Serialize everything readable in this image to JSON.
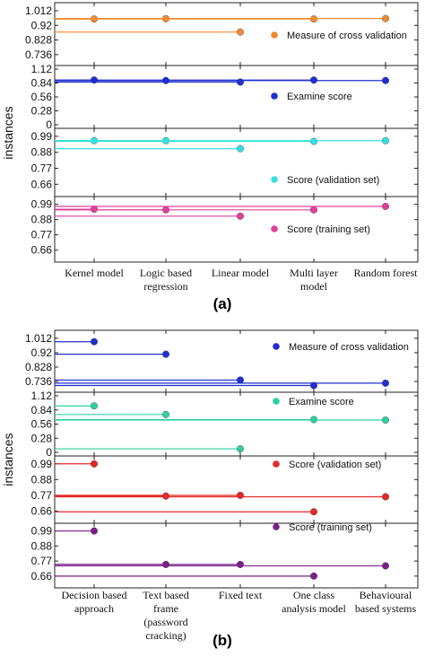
{
  "chart_data": [
    {
      "type": "scatter",
      "subfigure_label": "(a)",
      "ylabel": "instances",
      "categories": [
        "Kernel model",
        "Logic based regression",
        "Linear model",
        "Multi layer model",
        "Random forest"
      ],
      "category_lines": [
        [
          "Kernel model"
        ],
        [
          "Logic based",
          "regression"
        ],
        [
          "Linear model"
        ],
        [
          "Multi layer",
          "model"
        ],
        [
          "Random forest"
        ]
      ],
      "panels": [
        {
          "name": "Measure of cross validation",
          "color": "#f08a30",
          "yticks": [
            "1.012",
            "0.92",
            "0.828",
            "0.736"
          ],
          "ylim": [
            0.69,
            1.04
          ],
          "values": [
            0.96,
            0.962,
            0.878,
            0.96,
            0.963
          ]
        },
        {
          "name": "Examine score",
          "color": "#1f2fd0",
          "yticks": [
            "1.12",
            "0.84",
            "0.56",
            "0.28",
            "0"
          ],
          "ylim": [
            0,
            1.12
          ],
          "values": [
            0.9,
            0.89,
            0.86,
            0.9,
            0.89
          ]
        },
        {
          "name": "Score (validation set)",
          "color": "#35e0e0",
          "yticks": [
            "0.99",
            "0.88",
            "0.77",
            "0.66"
          ],
          "ylim": [
            0.6,
            1.02
          ],
          "values": [
            0.96,
            0.96,
            0.905,
            0.955,
            0.96
          ]
        },
        {
          "name": "Score (training set)",
          "color": "#e0409a",
          "yticks": [
            "0.99",
            "0.88",
            "0.77",
            "0.66"
          ],
          "ylim": [
            0.6,
            1.02
          ],
          "values": [
            0.955,
            0.95,
            0.905,
            0.95,
            0.975
          ]
        }
      ]
    },
    {
      "type": "scatter",
      "subfigure_label": "(b)",
      "ylabel": "instances",
      "categories": [
        "Decision based approach",
        "Text based frame (password cracking)",
        "Fixed text",
        "One class analysis model",
        "Behavioural based systems"
      ],
      "category_lines": [
        [
          "Decision based",
          "approach"
        ],
        [
          "Text based",
          "frame",
          "(password",
          "cracking)"
        ],
        [
          "Fixed text"
        ],
        [
          "One class",
          "analysis model"
        ],
        [
          "Behavioural",
          "based systems"
        ]
      ],
      "panels": [
        {
          "name": "Measure of cross validation",
          "color": "#1f2fd0",
          "yticks": [
            "1.012",
            "0.92",
            "0.828",
            "0.736"
          ],
          "ylim": [
            0.69,
            1.04
          ],
          "values": [
            0.99,
            0.91,
            0.745,
            0.71,
            0.725
          ]
        },
        {
          "name": "Examine score",
          "color": "#2fd0a0",
          "yticks": [
            "1.12",
            "0.84",
            "0.56",
            "0.28",
            "0"
          ],
          "ylim": [
            0,
            1.12
          ],
          "values": [
            0.92,
            0.75,
            0.07,
            0.65,
            0.64
          ]
        },
        {
          "name": "Score (validation set)",
          "color": "#e52828",
          "yticks": [
            "0.99",
            "0.88",
            "0.77",
            "0.66"
          ],
          "ylim": [
            0.6,
            1.02
          ],
          "values": [
            0.99,
            0.765,
            0.77,
            0.655,
            0.76
          ]
        },
        {
          "name": "Score (training set)",
          "color": "#7a1f8a",
          "yticks": [
            "0.99",
            "0.88",
            "0.77",
            "0.66"
          ],
          "ylim": [
            0.6,
            1.02
          ],
          "values": [
            0.99,
            0.745,
            0.745,
            0.66,
            0.735
          ]
        }
      ]
    }
  ]
}
